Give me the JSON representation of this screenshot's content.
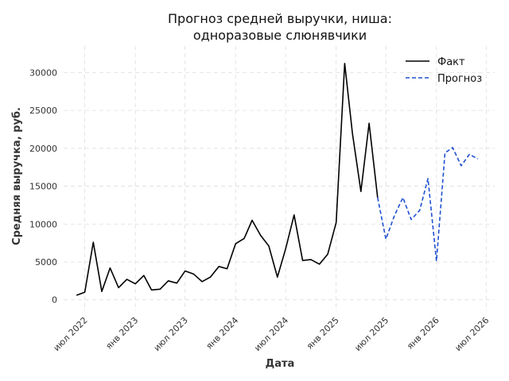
{
  "chart_data": {
    "type": "line",
    "title_lines": [
      "Прогноз средней выручки, ниша:",
      "одноразовые слюнявчики"
    ],
    "xlabel": "Дата",
    "ylabel": "Средняя выручка, руб.",
    "xlim": [
      "2022-04-15",
      "2026-08-01"
    ],
    "ylim": [
      -1500,
      33500
    ],
    "grid": true,
    "legend_position": "top-right",
    "x_ticks": [
      {
        "label": "июл 2022",
        "date": "2022-07-01"
      },
      {
        "label": "янв 2023",
        "date": "2023-01-01"
      },
      {
        "label": "июл 2023",
        "date": "2023-07-01"
      },
      {
        "label": "янв 2024",
        "date": "2024-01-01"
      },
      {
        "label": "июл 2024",
        "date": "2024-07-01"
      },
      {
        "label": "янв 2025",
        "date": "2025-01-01"
      },
      {
        "label": "июл 2025",
        "date": "2025-07-01"
      },
      {
        "label": "янв 2026",
        "date": "2026-01-01"
      },
      {
        "label": "июл 2026",
        "date": "2026-07-01"
      }
    ],
    "y_ticks": [
      0,
      5000,
      10000,
      15000,
      20000,
      25000,
      30000
    ],
    "series": [
      {
        "name": "Факт",
        "color": "#000000",
        "dash": false,
        "points": [
          [
            "2022-06-01",
            600
          ],
          [
            "2022-07-01",
            1000
          ],
          [
            "2022-08-01",
            7600
          ],
          [
            "2022-09-01",
            1100
          ],
          [
            "2022-10-01",
            4200
          ],
          [
            "2022-11-01",
            1600
          ],
          [
            "2022-12-01",
            2700
          ],
          [
            "2023-01-01",
            2100
          ],
          [
            "2023-02-01",
            3200
          ],
          [
            "2023-03-01",
            1300
          ],
          [
            "2023-04-01",
            1400
          ],
          [
            "2023-05-01",
            2500
          ],
          [
            "2023-06-01",
            2200
          ],
          [
            "2023-07-01",
            3800
          ],
          [
            "2023-08-01",
            3400
          ],
          [
            "2023-09-01",
            2400
          ],
          [
            "2023-10-01",
            3000
          ],
          [
            "2023-11-01",
            4400
          ],
          [
            "2023-12-01",
            4100
          ],
          [
            "2024-01-01",
            7400
          ],
          [
            "2024-02-01",
            8100
          ],
          [
            "2024-03-01",
            10500
          ],
          [
            "2024-04-01",
            8500
          ],
          [
            "2024-05-01",
            7100
          ],
          [
            "2024-06-01",
            3000
          ],
          [
            "2024-07-01",
            6700
          ],
          [
            "2024-08-01",
            11200
          ],
          [
            "2024-09-01",
            5200
          ],
          [
            "2024-10-01",
            5300
          ],
          [
            "2024-11-01",
            4700
          ],
          [
            "2024-12-01",
            6000
          ],
          [
            "2025-01-01",
            10200
          ],
          [
            "2025-02-01",
            31200
          ],
          [
            "2025-03-01",
            22000
          ],
          [
            "2025-04-01",
            14300
          ],
          [
            "2025-05-01",
            23300
          ],
          [
            "2025-06-01",
            13500
          ]
        ]
      },
      {
        "name": "Прогноз",
        "color": "#1f4fd1",
        "dash": true,
        "points": [
          [
            "2025-06-01",
            13500
          ],
          [
            "2025-07-01",
            8000
          ],
          [
            "2025-08-01",
            11100
          ],
          [
            "2025-09-01",
            13500
          ],
          [
            "2025-10-01",
            10600
          ],
          [
            "2025-11-01",
            11800
          ],
          [
            "2025-12-01",
            16000
          ],
          [
            "2026-01-01",
            5100
          ],
          [
            "2026-02-01",
            19400
          ],
          [
            "2026-03-01",
            20100
          ],
          [
            "2026-04-01",
            17700
          ],
          [
            "2026-05-01",
            19200
          ],
          [
            "2026-06-01",
            18600
          ]
        ]
      }
    ]
  }
}
